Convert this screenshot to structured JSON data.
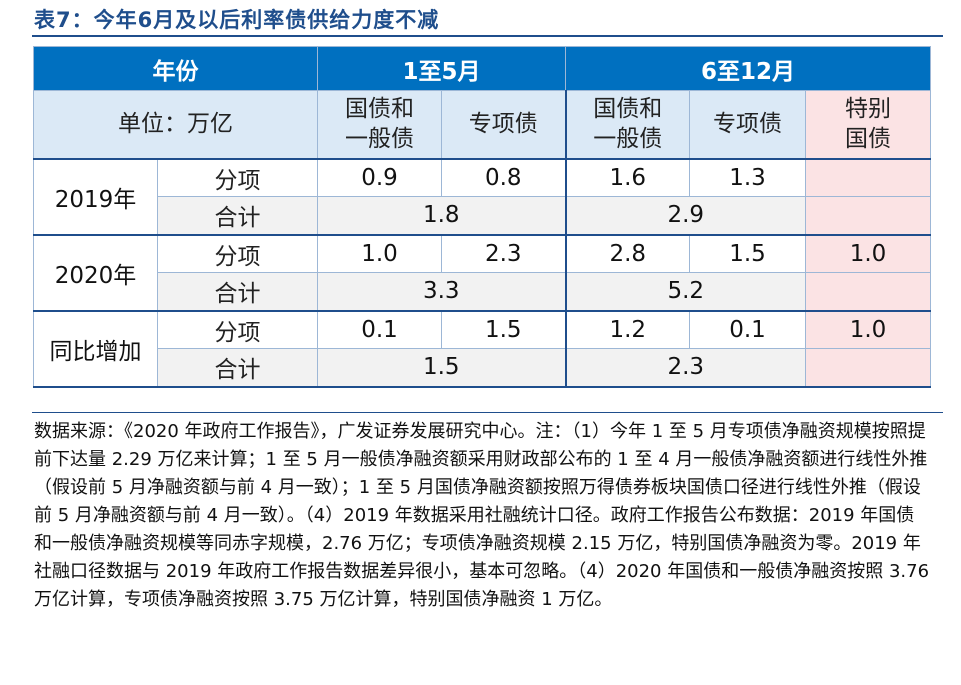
{
  "title": "表7：今年6月及以后利率债供给力度不减",
  "header": {
    "year_label": "年份",
    "period1": "1至5月",
    "period2": "6至12月"
  },
  "subheader": {
    "unit": "单位：万亿",
    "p1_col1": "国债和\n一般债",
    "p1_col2": "专项债",
    "p2_col1": "国债和\n一般债",
    "p2_col2": "专项债",
    "p2_col3": "特别\n国债"
  },
  "rows": [
    {
      "year": "2019年",
      "detail_label": "分项",
      "total_label": "合计",
      "p1_a": "0.9",
      "p1_b": "0.8",
      "p2_a": "1.6",
      "p2_b": "1.3",
      "p2_c": "",
      "p1_total": "1.8",
      "p2_total": "2.9"
    },
    {
      "year": "2020年",
      "detail_label": "分项",
      "total_label": "合计",
      "p1_a": "1.0",
      "p1_b": "2.3",
      "p2_a": "2.8",
      "p2_b": "1.5",
      "p2_c": "1.0",
      "p1_total": "3.3",
      "p2_total": "5.2"
    },
    {
      "year": "同比增加",
      "detail_label": "分项",
      "total_label": "合计",
      "p1_a": "0.1",
      "p1_b": "1.5",
      "p2_a": "1.2",
      "p2_b": "0.1",
      "p2_c": "1.0",
      "p1_total": "1.5",
      "p2_total": "2.3"
    }
  ],
  "note": "数据来源：《2020 年政府工作报告》，广发证券发展研究中心。注：（1）今年 1 至 5 月专项债净融资规模按照提前下达量 2.29 万亿来计算；1 至 5 月一般债净融资额采用财政部公布的 1 至 4 月一般债净融资额进行线性外推（假设前 5 月净融资额与前 4 月一致）；1 至 5 月国债净融资额按照万得债券板块国债口径进行线性外推（假设前 5 月净融资额与前 4 月一致）。（4）2019 年数据采用社融统计口径。政府工作报告公布数据：2019 年国债和一般债净融资规模等同赤字规模，2.76 万亿；专项债净融资规模 2.15 万亿，特别国债净融资为零。2019 年社融口径数据与 2019 年政府工作报告数据差异很小，基本可忽略。（4）2020 年国债和一般债净融资按照 3.76 万亿计算，专项债净融资按照 3.75 万亿计算，特别国债净融资 1 万亿。"
}
